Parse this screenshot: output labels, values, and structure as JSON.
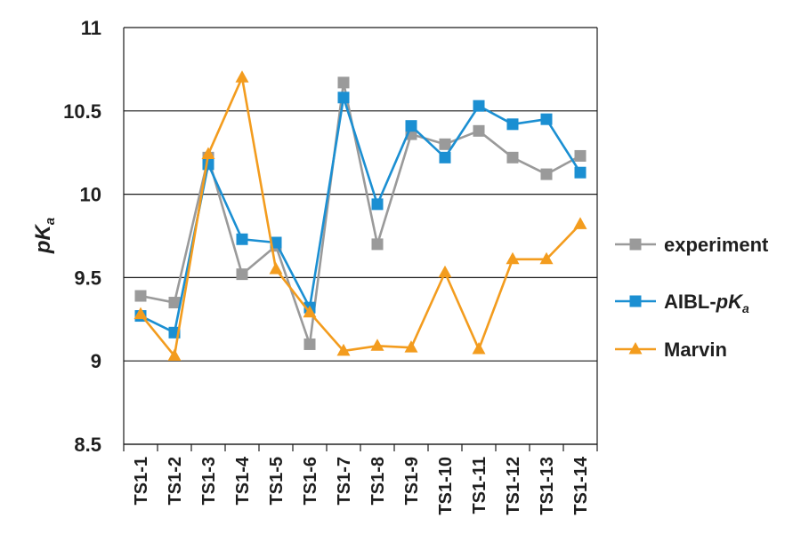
{
  "chart_data": {
    "type": "line",
    "title": "",
    "xlabel": "",
    "ylabel": {
      "main": "pK",
      "sub": "a"
    },
    "ylim": [
      8.5,
      11
    ],
    "y_ticks": [
      "8.5",
      "9",
      "9.5",
      "10",
      "10.5",
      "11"
    ],
    "grid": "horizontal",
    "legend_position": "right",
    "categories": [
      "TS1-1",
      "TS1-2",
      "TS1-3",
      "TS1-4",
      "TS1-5",
      "TS1-6",
      "TS1-7",
      "TS1-8",
      "TS1-9",
      "TS1-10",
      "TS1-11",
      "TS1-12",
      "TS1-13",
      "TS1-14"
    ],
    "series": [
      {
        "name": "experiment",
        "color": "#9a9a9a",
        "marker": "square",
        "values": [
          9.39,
          9.35,
          10.22,
          9.52,
          9.69,
          9.1,
          10.67,
          9.7,
          10.36,
          10.3,
          10.38,
          10.22,
          10.12,
          10.23
        ]
      },
      {
        "name": "AIBL-pKa",
        "name_parts": {
          "main": "AIBL-",
          "italic": "pK",
          "sub": "a"
        },
        "color": "#1b8fd2",
        "marker": "square",
        "values": [
          9.27,
          9.17,
          10.18,
          9.73,
          9.71,
          9.32,
          10.58,
          9.94,
          10.41,
          10.22,
          10.53,
          10.42,
          10.45,
          10.13
        ]
      },
      {
        "name": "Marvin",
        "color": "#f39c1e",
        "marker": "triangle",
        "values": [
          9.28,
          9.03,
          10.24,
          10.7,
          9.55,
          9.29,
          9.06,
          9.09,
          9.08,
          9.53,
          9.07,
          9.61,
          9.61,
          9.82
        ]
      }
    ]
  }
}
